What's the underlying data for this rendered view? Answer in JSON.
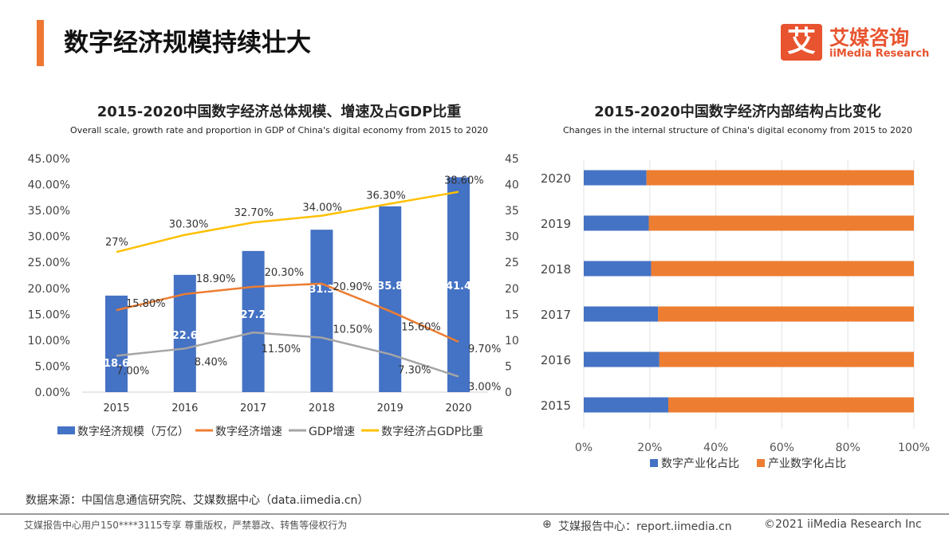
{
  "header": {
    "title": "数字经济规模持续壮大",
    "logo_mark": "艾",
    "logo_cn": "艾媒咨询",
    "logo_en": "iiMedia Research"
  },
  "chart_data": [
    {
      "type": "bar+line",
      "title": "2015-2020中国数字经济总体规模、增速及占GDP比重",
      "subtitle": "Overall scale, growth rate and proportion in GDP of China's digital economy from 2015 to 2020",
      "categories": [
        "2015",
        "2016",
        "2017",
        "2018",
        "2019",
        "2020"
      ],
      "y_left": {
        "range": [
          0,
          45
        ],
        "ticks": [
          "0.00%",
          "5.00%",
          "10.00%",
          "15.00%",
          "20.00%",
          "25.00%",
          "30.00%",
          "35.00%",
          "40.00%",
          "45.00%"
        ]
      },
      "y_right": {
        "range": [
          0,
          45
        ],
        "ticks": [
          "0",
          "5",
          "10",
          "15",
          "20",
          "25",
          "30",
          "35",
          "40",
          "45"
        ]
      },
      "series": [
        {
          "name": "数字经济规模（万亿）",
          "kind": "bar",
          "axis": "right",
          "color": "#4472c4",
          "values": [
            18.6,
            22.6,
            27.2,
            31.3,
            35.8,
            41.4
          ],
          "labels": [
            "18.6",
            "22.6",
            "27.2",
            "31.3",
            "35.8",
            "41.4"
          ]
        },
        {
          "name": "数字经济增速",
          "kind": "line",
          "axis": "left",
          "color": "#ed7d31",
          "values": [
            15.8,
            18.9,
            20.3,
            20.9,
            15.6,
            9.7
          ],
          "labels": [
            "15.80%",
            "18.90%",
            "20.30%",
            "20.90%",
            "15.60%",
            "9.70%"
          ]
        },
        {
          "name": "GDP增速",
          "kind": "line",
          "axis": "left",
          "color": "#a5a5a5",
          "values": [
            7.0,
            8.4,
            11.5,
            10.5,
            7.3,
            3.0
          ],
          "labels": [
            "7.00%",
            "8.40%",
            "11.50%",
            "10.50%",
            "7.30%",
            "3.00%"
          ]
        },
        {
          "name": "数字经济占GDP比重",
          "kind": "line",
          "axis": "left",
          "color": "#ffc000",
          "values": [
            27,
            30.3,
            32.7,
            34.0,
            36.3,
            38.6
          ],
          "labels": [
            "27%",
            "30.30%",
            "32.70%",
            "34.00%",
            "36.30%",
            "38.60%"
          ]
        }
      ],
      "legend": "bottom",
      "grid": false
    },
    {
      "type": "bar",
      "stacked": "percent",
      "orientation": "horizontal",
      "title": "2015-2020中国数字经济内部结构占比变化",
      "subtitle": "Changes in the internal structure of China's digital economy from 2015 to 2020",
      "categories": [
        "2020",
        "2019",
        "2018",
        "2017",
        "2016",
        "2015"
      ],
      "x_ticks": [
        "0%",
        "20%",
        "40%",
        "60%",
        "80%",
        "100%"
      ],
      "xlim": [
        0,
        100
      ],
      "series": [
        {
          "name": "数字产业化占比",
          "color": "#4472c4",
          "values": [
            19.0,
            19.7,
            20.4,
            22.5,
            22.9,
            25.6
          ]
        },
        {
          "name": "产业数字化占比",
          "color": "#ed7d31",
          "values": [
            81.0,
            80.3,
            79.6,
            77.5,
            77.1,
            74.4
          ]
        }
      ],
      "legend": "bottom",
      "grid": true
    }
  ],
  "footer": {
    "source": "数据来源：中国信息通信研究院、艾媒数据中心（data.iimedia.cn）",
    "notice": "艾媒报告中心用户150****3115专享 尊重版权，严禁篡改、转售等侵权行为",
    "site": "艾媒报告中心：report.iimedia.cn",
    "copyright": "©2021  iiMedia Research  Inc",
    "site_icon": "globe-icon"
  }
}
